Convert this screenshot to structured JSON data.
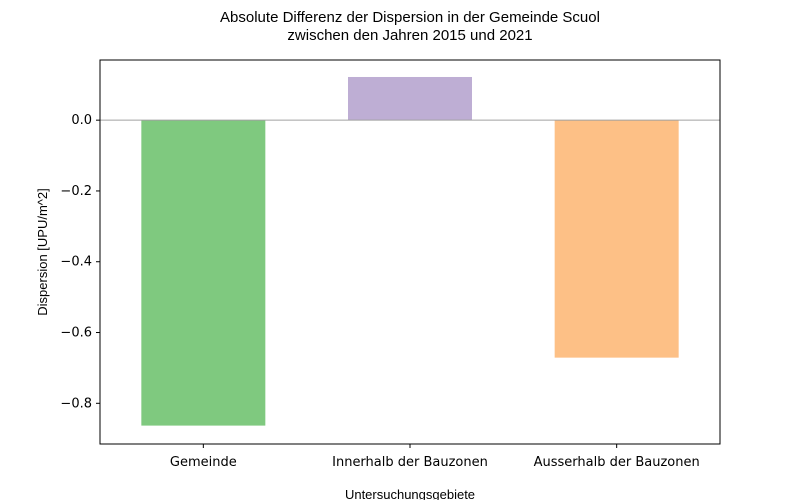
{
  "chart_data": {
    "type": "bar",
    "title_lines": [
      "Absolute Differenz der Dispersion in der Gemeinde Scuol",
      "zwischen den Jahren 2015 und 2021"
    ],
    "xlabel": "Untersuchungsgebiete",
    "ylabel": "Dispersion [UPU/m^2]",
    "categories": [
      "Gemeinde",
      "Innerhalb der Bauzonen",
      "Ausserhalb der Bauzonen"
    ],
    "values": [
      -0.863,
      0.122,
      -0.671
    ],
    "colors": [
      "#7fc97f",
      "#beaed4",
      "#fdc086"
    ],
    "ylim": [
      -0.915,
      0.17
    ],
    "yticks": [
      0.0,
      -0.2,
      -0.4,
      -0.6,
      -0.8
    ],
    "ytick_labels": [
      "0.0",
      "−0.2",
      "−0.4",
      "−0.6",
      "−0.8"
    ],
    "zero_line": true,
    "grid": false
  }
}
